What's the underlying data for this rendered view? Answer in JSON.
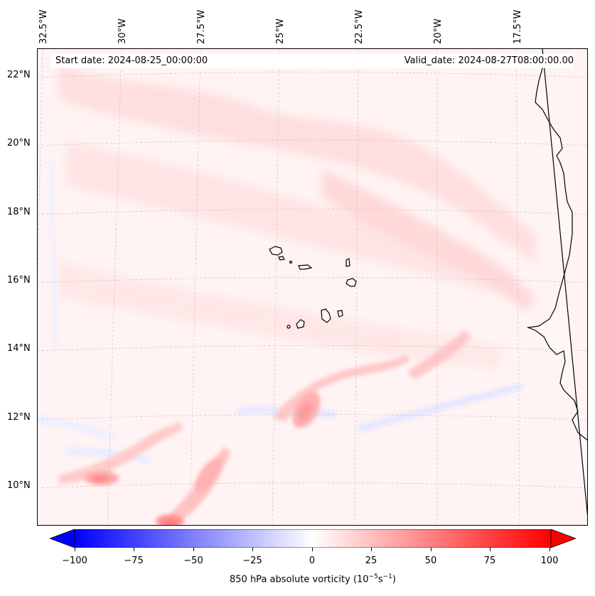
{
  "map": {
    "start_date": "Start date: 2024-08-25_00:00:00",
    "valid_date": "Valid_date: 2024-08-27T08:00:00.00",
    "longitude_labels": [
      "32.5°W",
      "30°W",
      "27.5°W",
      "25°W",
      "22.5°W",
      "20°W",
      "17.5°W"
    ],
    "latitude_labels": [
      "22°N",
      "20°N",
      "18°N",
      "16°N",
      "14°N",
      "12°N",
      "10°N"
    ],
    "colors": {
      "positive": "#ff0000",
      "negative": "#0000ff",
      "zero": "#ffffff",
      "coast": "#000000"
    }
  },
  "colorbar": {
    "ticks": [
      "−100",
      "−75",
      "−50",
      "−25",
      "0",
      "25",
      "50",
      "75",
      "100"
    ],
    "label_text": "850 hPa absolute vorticity (10",
    "label_exp1": "−5",
    "label_mid": "s",
    "label_exp2": "−1",
    "label_end": ")"
  }
}
